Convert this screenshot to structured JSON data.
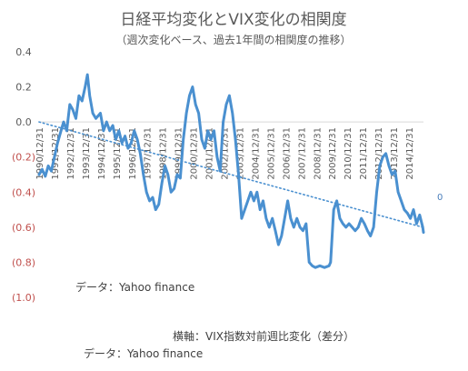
{
  "chart_data": {
    "type": "line",
    "title": "日経平均変化とVIX変化の相関度",
    "subtitle": "（週次変化ベース、過去1年間の相関度の推移）",
    "xlabel": "",
    "ylabel": "",
    "ylim": [
      -1.0,
      0.4
    ],
    "yticks": [
      {
        "value": 0.4,
        "label": "0.4"
      },
      {
        "value": 0.2,
        "label": "0.2"
      },
      {
        "value": 0.0,
        "label": "0.0"
      },
      {
        "value": -0.2,
        "label": "(0.2)"
      },
      {
        "value": -0.4,
        "label": "(0.4)"
      },
      {
        "value": -0.6,
        "label": "(0.6)"
      },
      {
        "value": -0.8,
        "label": "(0.8)"
      },
      {
        "value": -1.0,
        "label": "(1.0)"
      }
    ],
    "x_tick_labels": [
      "1990/12/31",
      "1991/12/31",
      "1992/12/31",
      "1993/12/31",
      "1994/12/31",
      "1995/12/31",
      "1996/12/31",
      "1997/12/31",
      "1998/12/31",
      "1999/12/31",
      "2000/12/31",
      "2001/12/31",
      "2002/12/31",
      "2003/12/31",
      "2004/12/31",
      "2005/12/31",
      "2006/12/31",
      "2007/12/31",
      "2008/12/31",
      "2009/12/31",
      "2010/12/31",
      "2011/12/31",
      "2012/12/31",
      "2013/12/31",
      "2014/12/31"
    ],
    "grid": false,
    "legend": "none",
    "series": [
      {
        "color": "#4a90d0",
        "style": "solid",
        "points": [
          [
            1990.0,
            -0.3
          ],
          [
            1990.2,
            -0.27
          ],
          [
            1990.4,
            -0.31
          ],
          [
            1990.6,
            -0.25
          ],
          [
            1990.8,
            -0.28
          ],
          [
            1991.0,
            -0.2
          ],
          [
            1991.2,
            -0.12
          ],
          [
            1991.4,
            -0.06
          ],
          [
            1991.6,
            0.0
          ],
          [
            1991.8,
            -0.05
          ],
          [
            1992.0,
            0.1
          ],
          [
            1992.2,
            0.07
          ],
          [
            1992.4,
            0.02
          ],
          [
            1992.6,
            0.15
          ],
          [
            1992.8,
            0.12
          ],
          [
            1993.0,
            0.2
          ],
          [
            1993.15,
            0.27
          ],
          [
            1993.3,
            0.15
          ],
          [
            1993.5,
            0.05
          ],
          [
            1993.7,
            0.02
          ],
          [
            1994.0,
            0.05
          ],
          [
            1994.2,
            -0.05
          ],
          [
            1994.4,
            0.0
          ],
          [
            1994.6,
            -0.05
          ],
          [
            1994.8,
            -0.02
          ],
          [
            1995.0,
            -0.1
          ],
          [
            1995.2,
            -0.05
          ],
          [
            1995.4,
            -0.12
          ],
          [
            1995.6,
            -0.08
          ],
          [
            1995.8,
            -0.15
          ],
          [
            1996.0,
            -0.12
          ],
          [
            1996.2,
            -0.05
          ],
          [
            1996.4,
            -0.1
          ],
          [
            1996.6,
            -0.18
          ],
          [
            1996.8,
            -0.3
          ],
          [
            1997.0,
            -0.4
          ],
          [
            1997.2,
            -0.45
          ],
          [
            1997.4,
            -0.43
          ],
          [
            1997.6,
            -0.5
          ],
          [
            1997.8,
            -0.47
          ],
          [
            1998.0,
            -0.35
          ],
          [
            1998.2,
            -0.25
          ],
          [
            1998.4,
            -0.3
          ],
          [
            1998.6,
            -0.4
          ],
          [
            1998.8,
            -0.38
          ],
          [
            1999.0,
            -0.3
          ],
          [
            1999.2,
            -0.32
          ],
          [
            1999.4,
            -0.1
          ],
          [
            1999.6,
            0.05
          ],
          [
            1999.8,
            0.15
          ],
          [
            2000.0,
            0.2
          ],
          [
            2000.2,
            0.1
          ],
          [
            2000.4,
            0.05
          ],
          [
            2000.6,
            -0.1
          ],
          [
            2000.8,
            -0.15
          ],
          [
            2001.0,
            -0.05
          ],
          [
            2001.2,
            -0.1
          ],
          [
            2001.4,
            -0.05
          ],
          [
            2001.6,
            -0.2
          ],
          [
            2001.8,
            -0.28
          ],
          [
            2002.0,
            0.0
          ],
          [
            2002.2,
            0.1
          ],
          [
            2002.4,
            0.15
          ],
          [
            2002.6,
            0.05
          ],
          [
            2002.8,
            -0.1
          ],
          [
            2003.0,
            -0.3
          ],
          [
            2003.2,
            -0.55
          ],
          [
            2003.4,
            -0.5
          ],
          [
            2003.6,
            -0.45
          ],
          [
            2003.8,
            -0.4
          ],
          [
            2004.0,
            -0.45
          ],
          [
            2004.2,
            -0.4
          ],
          [
            2004.4,
            -0.5
          ],
          [
            2004.6,
            -0.45
          ],
          [
            2004.8,
            -0.55
          ],
          [
            2005.0,
            -0.6
          ],
          [
            2005.2,
            -0.55
          ],
          [
            2005.4,
            -0.62
          ],
          [
            2005.6,
            -0.7
          ],
          [
            2005.8,
            -0.65
          ],
          [
            2006.0,
            -0.55
          ],
          [
            2006.2,
            -0.45
          ],
          [
            2006.4,
            -0.55
          ],
          [
            2006.6,
            -0.6
          ],
          [
            2006.8,
            -0.55
          ],
          [
            2007.0,
            -0.6
          ],
          [
            2007.2,
            -0.62
          ],
          [
            2007.4,
            -0.58
          ],
          [
            2007.6,
            -0.8
          ],
          [
            2007.8,
            -0.82
          ],
          [
            2008.0,
            -0.83
          ],
          [
            2008.3,
            -0.82
          ],
          [
            2008.6,
            -0.83
          ],
          [
            2008.9,
            -0.82
          ],
          [
            2009.0,
            -0.8
          ],
          [
            2009.2,
            -0.5
          ],
          [
            2009.4,
            -0.45
          ],
          [
            2009.6,
            -0.55
          ],
          [
            2009.8,
            -0.58
          ],
          [
            2010.0,
            -0.6
          ],
          [
            2010.2,
            -0.58
          ],
          [
            2010.4,
            -0.6
          ],
          [
            2010.6,
            -0.62
          ],
          [
            2010.8,
            -0.6
          ],
          [
            2011.0,
            -0.55
          ],
          [
            2011.2,
            -0.58
          ],
          [
            2011.4,
            -0.62
          ],
          [
            2011.6,
            -0.65
          ],
          [
            2011.8,
            -0.6
          ],
          [
            2012.0,
            -0.4
          ],
          [
            2012.2,
            -0.25
          ],
          [
            2012.4,
            -0.2
          ],
          [
            2012.6,
            -0.18
          ],
          [
            2012.8,
            -0.25
          ],
          [
            2013.0,
            -0.3
          ],
          [
            2013.2,
            -0.28
          ],
          [
            2013.4,
            -0.4
          ],
          [
            2013.6,
            -0.45
          ],
          [
            2013.8,
            -0.5
          ],
          [
            2014.0,
            -0.52
          ],
          [
            2014.2,
            -0.55
          ],
          [
            2014.4,
            -0.5
          ],
          [
            2014.6,
            -0.58
          ],
          [
            2014.8,
            -0.53
          ],
          [
            2015.0,
            -0.6
          ],
          [
            2015.05,
            -0.63
          ]
        ]
      },
      {
        "color": "#4a90d0",
        "style": "dotted",
        "points": [
          [
            1990.0,
            0.0
          ],
          [
            2015.0,
            -0.6
          ]
        ]
      }
    ],
    "annotations": [
      {
        "label": "データ：Yahoo finance"
      },
      {
        "label": "横軸：VIX指数対前週比変化（差分）"
      },
      {
        "label": "データ：Yahoo finance"
      },
      {
        "label": "0"
      }
    ]
  }
}
